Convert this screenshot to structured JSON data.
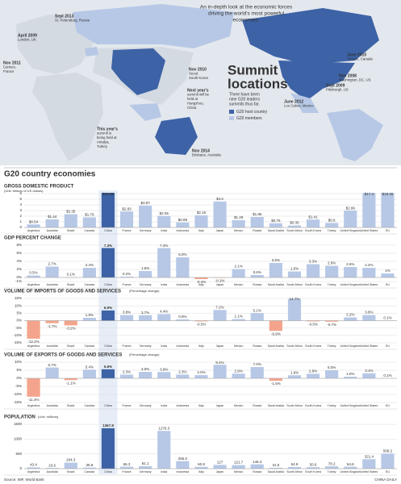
{
  "intro": [
    "An in-depth look at the economic forces",
    "driving the world's most powerful",
    "economies."
  ],
  "map": {
    "title_lines": [
      "Summit",
      "locations"
    ],
    "description": [
      "There have been",
      "nine G20 leaders",
      "summits thus far."
    ],
    "legend": [
      {
        "name": "G20 host country",
        "color": "#3d62a6"
      },
      {
        "name": "G20 members",
        "color": "#b7c8e6"
      }
    ],
    "summits": [
      {
        "lines": [
          "Sept 2013",
          "St. Petersburg, Russia"
        ]
      },
      {
        "lines": [
          "April 2009",
          "London, UK"
        ]
      },
      {
        "lines": [
          "Nov 2011",
          "Cannes,",
          "France"
        ]
      },
      {
        "lines": [
          "Nov 2010",
          "Seoul,",
          "South Korea"
        ]
      },
      {
        "lines": [
          "Next year's",
          "summit will be",
          "held at",
          "Hangzhou,",
          "China"
        ]
      },
      {
        "lines": [
          "This year's",
          "summit is",
          "being held at",
          "Antalya,",
          "Turkey"
        ]
      },
      {
        "lines": [
          "Nov 2014",
          "Brisbane, Australia"
        ]
      },
      {
        "lines": [
          "June 2010",
          "Toronto, Canada"
        ]
      },
      {
        "lines": [
          "Nov 2008",
          "Washington, DC, US"
        ]
      },
      {
        "lines": [
          "Sept 2009",
          "Pittsburgh, US"
        ]
      },
      {
        "lines": [
          "June 2012",
          "Los Cabos, Mexico"
        ]
      }
    ]
  },
  "section_title": "G20 country economies",
  "source": "Source: IMF, World Bank",
  "credit": "CHINA DAILY",
  "chart_data": [
    {
      "type": "bar",
      "title": "GROSS DOMESTIC PRODUCT",
      "subtitle": "(Unit: trillions of US dollars)",
      "categories": [
        "Argentina",
        "Australia",
        "Brazil",
        "Canada",
        "China",
        "France",
        "Germany",
        "India",
        "Indonesia",
        "Italy",
        "Japan",
        "Mexico",
        "Russia",
        "Saudi Arabia",
        "South Africa",
        "South Korea",
        "Turkey",
        "United Kingdom",
        "United States",
        "EU"
      ],
      "values": [
        0.54,
        1.44,
        2.35,
        1.79,
        10.36,
        2.83,
        3.87,
        2.05,
        0.89,
        2.15,
        4.6,
        1.29,
        1.86,
        0.75,
        0.35,
        1.41,
        0.8,
        2.99,
        17.4,
        18.46
      ],
      "value_labels": [
        "$0.54",
        "$1.44",
        "$2.35",
        "$1.79",
        "$10.36",
        "$2.83",
        "$3.87",
        "$2.05",
        "$0.89",
        "$2.15",
        "$4.6",
        "$1.29",
        "$1.86",
        "$0.75",
        "$0.35",
        "$1.41",
        "$0.8",
        "$2.99",
        "$17.4",
        "$18.46"
      ],
      "ylim": [
        0,
        6
      ],
      "yticks": [
        0,
        1,
        2,
        3,
        4,
        5,
        6
      ],
      "color": "#b7c8e6",
      "negative_color": "#f4a48c",
      "highlight": "China",
      "highlight_color": "#3d62a6"
    },
    {
      "type": "bar",
      "title": "GDP PERCENT CHANGE",
      "categories": [
        "Argentina",
        "Australia",
        "Brazil",
        "Canada",
        "China",
        "France",
        "Germany",
        "India",
        "Indonesia",
        "Italy",
        "Japan",
        "Mexico",
        "Russia",
        "Saudi Arabia",
        "South Africa",
        "South Korea",
        "Turkey",
        "United Kingdom",
        "United States",
        "EU"
      ],
      "values": [
        0.5,
        2.7,
        0.1,
        2.4,
        7.3,
        0.2,
        1.6,
        7.3,
        5.0,
        -0.4,
        -0.1,
        2.1,
        0.6,
        3.6,
        1.5,
        3.3,
        2.9,
        2.6,
        2.4,
        1
      ],
      "value_labels": [
        "0.5%",
        "2.7%",
        "0.1%",
        "2.4%",
        "7.3%",
        "0.2%",
        "1.6%",
        "7.3%",
        "5.0%",
        "-0.4%",
        "-0.1%",
        "2.1%",
        "0.6%",
        "3.6%",
        "1.5%",
        "3.3%",
        "2.9%",
        "2.6%",
        "2.4%",
        "1%"
      ],
      "ylim": [
        -1,
        8
      ],
      "yticks": [
        {
          "value": -1,
          "label": "-1%"
        },
        {
          "value": 0,
          "label": "0%"
        },
        {
          "value": 2,
          "label": "2%"
        },
        {
          "value": 4,
          "label": "4%"
        },
        {
          "value": 6,
          "label": "6%"
        },
        {
          "value": 8,
          "label": "8%"
        }
      ],
      "color": "#b7c8e6",
      "negative_color": "#f4a48c",
      "highlight": "China",
      "highlight_color": "#3d62a6"
    },
    {
      "type": "bar",
      "title": "VOLUME OF IMPORTS OF GOODS AND SERVICES",
      "subtitle": "(Percentage change)",
      "categories": [
        "Argentina",
        "Australia",
        "Brazil",
        "Canada",
        "China",
        "France",
        "Germany",
        "India",
        "Indonesia",
        "Italy",
        "Japan",
        "Mexico",
        "Russia",
        "Saudi Arabia",
        "South Africa",
        "South Korea",
        "Turkey",
        "United Kingdom",
        "United States",
        "EU"
      ],
      "values": [
        -12.2,
        -1.7,
        -3.2,
        1.9,
        6.9,
        3.8,
        3.7,
        4.4,
        0.9,
        -0.5,
        7.2,
        1.1,
        5.1,
        -6.9,
        14.7,
        -0.5,
        -0.7,
        2.2,
        3.8,
        0.1
      ],
      "value_labels": [
        "-12.2%",
        "-1.7%",
        "-3.2%",
        "1.9%",
        "6.9%",
        "3.8%",
        "3.7%",
        "4.4%",
        "0.9%",
        "-0.5%",
        "7.2%",
        "1.1%",
        "5.1%",
        "-6.9%",
        "14.7%",
        "-0.5%",
        "-0.7%",
        "2.2%",
        "3.8%",
        "0.1%"
      ],
      "ylim": [
        -15,
        15
      ],
      "yticks": [
        {
          "value": -15,
          "label": "-15%"
        },
        {
          "value": -10,
          "label": "-10%"
        },
        {
          "value": -5,
          "label": "-5%"
        },
        {
          "value": 0,
          "label": "0%"
        },
        {
          "value": 5,
          "label": "5%"
        },
        {
          "value": 10,
          "label": "10%"
        },
        {
          "value": 15,
          "label": "15%"
        }
      ],
      "color": "#b7c8e6",
      "negative_color": "#f4a48c",
      "highlight": "China",
      "highlight_color": "#3d62a6"
    },
    {
      "type": "bar",
      "title": "VOLUME OF EXPORTS OF GOODS AND SERVICES",
      "subtitle": "(Percentage change)",
      "categories": [
        "Argentina",
        "Australia",
        "Brazil",
        "Canada",
        "China",
        "France",
        "Germany",
        "India",
        "Indonesia",
        "Italy",
        "Japan",
        "Mexico",
        "Russia",
        "Saudi Arabia",
        "South Africa",
        "South Korea",
        "Turkey",
        "United Kingdom",
        "United States",
        "EU"
      ],
      "values": [
        -11.4,
        6.7,
        -1.1,
        5.4,
        5.6,
        2.3,
        4.0,
        3.9,
        2.3,
        2.0,
        8.4,
        2.9,
        7.0,
        -1.5,
        1.9,
        2.8,
        5.0,
        1.0,
        3.1,
        0.1
      ],
      "value_labels": [
        "-11.4%",
        "6.7%",
        "-1.1%",
        "5.4%",
        "5.6%",
        "2.3%",
        "4.0%",
        "3.9%",
        "2.3%",
        "2.0%",
        "8.4%",
        "2.9%",
        "7.0%",
        "-1.5%",
        "1.9%",
        "2.8%",
        "5.0%",
        "1.0%",
        "3.1%",
        "0.1%"
      ],
      "ylim": [
        -15,
        10
      ],
      "yticks": [
        {
          "value": -15,
          "label": "-15%"
        },
        {
          "value": -10,
          "label": "-10%"
        },
        {
          "value": -5,
          "label": "-5%"
        },
        {
          "value": 0,
          "label": "0%"
        },
        {
          "value": 5,
          "label": "5%"
        },
        {
          "value": 10,
          "label": "10%"
        }
      ],
      "color": "#b7c8e6",
      "negative_color": "#f4a48c",
      "highlight": "China",
      "highlight_color": "#3d62a6"
    },
    {
      "type": "bar",
      "title": "POPULATION",
      "subtitle": "(Unit: millions)",
      "categories": [
        "Argentina",
        "Australia",
        "Brazil",
        "Canada",
        "China",
        "France",
        "Germany",
        "India",
        "Indonesia",
        "Italy",
        "Japan",
        "Mexico",
        "Russia",
        "Saudi Arabia",
        "South Africa",
        "South Korea",
        "Turkey",
        "United Kingdom",
        "United States",
        "EU"
      ],
      "values": [
        43.4,
        23.6,
        204.3,
        35.8,
        1367.8,
        66.3,
        81.1,
        1276.3,
        255.5,
        60.8,
        127.0,
        121.7,
        146.3,
        31.5,
        54.9,
        50.6,
        78.2,
        64.8,
        321.4,
        508.2
      ],
      "ylim": [
        0,
        1500
      ],
      "yticks": [
        0,
        500,
        1000,
        1500
      ],
      "color": "#b7c8e6",
      "negative_color": "#f4a48c",
      "highlight": "China",
      "highlight_color": "#3d62a6"
    }
  ]
}
